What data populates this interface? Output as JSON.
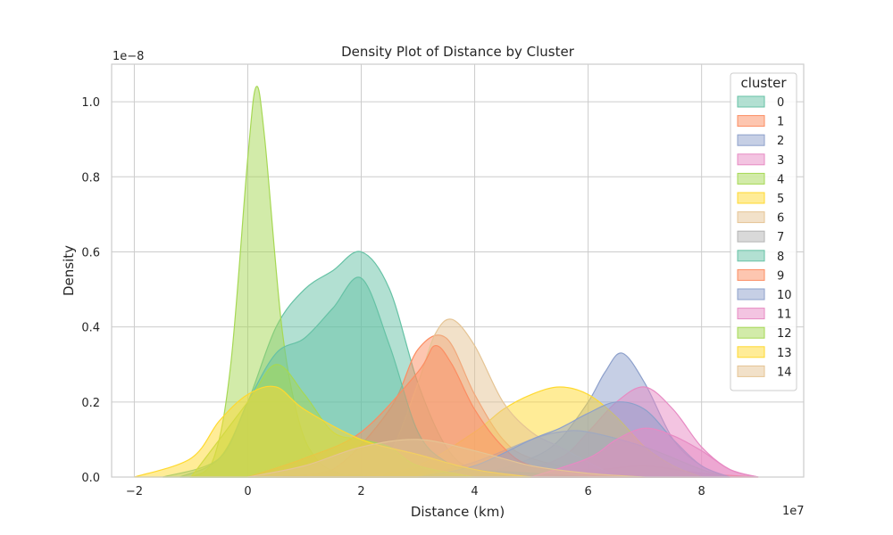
{
  "chart_data": {
    "type": "area",
    "title": "Density Plot of Distance by Cluster",
    "xlabel": "Distance (km)",
    "ylabel": "Density",
    "x_offset_label": "1e7",
    "y_offset_label": "1e−8",
    "xlim": [
      -2.4,
      9.8
    ],
    "ylim": [
      0,
      1.1
    ],
    "xticks": [
      -2,
      0,
      2,
      4,
      6,
      8
    ],
    "yticks": [
      0.0,
      0.2,
      0.4,
      0.6,
      0.8,
      1.0
    ],
    "xtick_labels": [
      "−2",
      "0",
      "2",
      "4",
      "6",
      "8"
    ],
    "ytick_labels": [
      "0.0",
      "0.2",
      "0.4",
      "0.6",
      "0.8",
      "1.0"
    ],
    "grid": true,
    "legend": {
      "title": "cluster",
      "placement": "top-right"
    },
    "series": [
      {
        "name": "0",
        "color": "#66c2a5",
        "x": [
          -1.2,
          -0.5,
          0.0,
          0.5,
          1.0,
          1.5,
          2.0,
          2.5,
          3.0,
          3.5,
          4.0,
          5.0,
          6.0
        ],
        "y": [
          0,
          0.05,
          0.2,
          0.4,
          0.5,
          0.55,
          0.6,
          0.5,
          0.25,
          0.08,
          0.02,
          0.003,
          0
        ]
      },
      {
        "name": "1",
        "color": "#fc8d62",
        "x": [
          0.5,
          1.5,
          2.5,
          3.0,
          3.5,
          4.0,
          4.5,
          5.0,
          6.0,
          7.0,
          8.0,
          9.0
        ],
        "y": [
          0,
          0.02,
          0.18,
          0.34,
          0.37,
          0.22,
          0.1,
          0.05,
          0.02,
          0.03,
          0.01,
          0
        ]
      },
      {
        "name": "2",
        "color": "#8da0cb",
        "x": [
          4.0,
          5.0,
          5.5,
          6.0,
          6.3,
          6.6,
          7.0,
          7.5,
          8.0,
          8.5
        ],
        "y": [
          0,
          0.05,
          0.1,
          0.2,
          0.28,
          0.33,
          0.25,
          0.1,
          0.03,
          0
        ]
      },
      {
        "name": "3",
        "color": "#e78ac3",
        "x": [
          4.5,
          5.5,
          6.0,
          6.5,
          7.0,
          7.5,
          8.0,
          8.5,
          9.0
        ],
        "y": [
          0,
          0.05,
          0.12,
          0.2,
          0.24,
          0.18,
          0.08,
          0.02,
          0
        ]
      },
      {
        "name": "4",
        "color": "#a6d854",
        "x": [
          -1.0,
          -0.6,
          -0.3,
          0.0,
          0.15,
          0.3,
          0.6,
          0.9,
          1.2,
          1.6,
          2.0,
          2.5,
          3.0
        ],
        "y": [
          0,
          0.05,
          0.3,
          0.85,
          1.04,
          0.9,
          0.4,
          0.15,
          0.05,
          0.01,
          0.005,
          0.002,
          0
        ]
      },
      {
        "name": "5",
        "color": "#ffd92f",
        "x": [
          2.0,
          3.0,
          4.0,
          4.5,
          5.0,
          5.5,
          6.0,
          6.5,
          7.0,
          7.5,
          8.0
        ],
        "y": [
          0,
          0.03,
          0.12,
          0.18,
          0.22,
          0.24,
          0.22,
          0.16,
          0.08,
          0.03,
          0
        ]
      },
      {
        "name": "6",
        "color": "#e5c494",
        "x": [
          2.0,
          2.5,
          3.0,
          3.3,
          3.6,
          4.0,
          4.5,
          5.0,
          5.5,
          6.0,
          6.5
        ],
        "y": [
          0,
          0.06,
          0.25,
          0.38,
          0.42,
          0.35,
          0.2,
          0.12,
          0.08,
          0.04,
          0
        ]
      },
      {
        "name": "7",
        "color": "#b3b3b3",
        "x": [
          3.0,
          4.0,
          5.0,
          5.5,
          6.0,
          7.0,
          8.0,
          8.5
        ],
        "y": [
          0,
          0.04,
          0.1,
          0.12,
          0.12,
          0.08,
          0.02,
          0
        ]
      },
      {
        "name": "8",
        "color": "#66c2a5",
        "x": [
          -1.5,
          -0.5,
          0.0,
          0.5,
          1.0,
          1.5,
          2.0,
          2.5,
          3.0,
          3.5,
          4.0,
          5.0,
          6.0
        ],
        "y": [
          0,
          0.05,
          0.2,
          0.33,
          0.37,
          0.45,
          0.53,
          0.35,
          0.12,
          0.04,
          0.02,
          0.01,
          0
        ]
      },
      {
        "name": "9",
        "color": "#fc8d62",
        "x": [
          0.0,
          1.0,
          2.0,
          3.0,
          3.3,
          3.6,
          4.0,
          4.5,
          5.0,
          6.0,
          7.0
        ],
        "y": [
          0,
          0.05,
          0.12,
          0.28,
          0.35,
          0.3,
          0.18,
          0.08,
          0.03,
          0.01,
          0
        ]
      },
      {
        "name": "10",
        "color": "#8da0cb",
        "x": [
          3.0,
          4.0,
          5.0,
          5.5,
          6.0,
          6.5,
          7.0,
          7.5,
          8.0,
          8.5
        ],
        "y": [
          0,
          0.03,
          0.1,
          0.13,
          0.17,
          0.2,
          0.18,
          0.1,
          0.03,
          0
        ]
      },
      {
        "name": "11",
        "color": "#e78ac3",
        "x": [
          5.0,
          6.0,
          6.5,
          7.0,
          7.5,
          8.0,
          8.5,
          9.0
        ],
        "y": [
          0,
          0.05,
          0.1,
          0.13,
          0.11,
          0.07,
          0.02,
          0
        ]
      },
      {
        "name": "12",
        "color": "#a6d854",
        "x": [
          -1.0,
          0.0,
          0.5,
          1.0,
          1.5,
          2.0,
          2.5,
          3.0,
          4.0
        ],
        "y": [
          0,
          0.2,
          0.3,
          0.22,
          0.12,
          0.1,
          0.08,
          0.03,
          0
        ]
      },
      {
        "name": "13",
        "color": "#ffd92f",
        "x": [
          -2.0,
          -1.0,
          -0.5,
          0.0,
          0.5,
          1.0,
          2.0,
          3.0,
          4.0,
          5.0
        ],
        "y": [
          0,
          0.05,
          0.15,
          0.22,
          0.24,
          0.18,
          0.1,
          0.06,
          0.02,
          0
        ]
      },
      {
        "name": "14",
        "color": "#e5c494",
        "x": [
          0.0,
          1.0,
          2.0,
          3.0,
          4.0,
          5.0,
          6.0,
          7.0
        ],
        "y": [
          0,
          0.03,
          0.08,
          0.1,
          0.07,
          0.03,
          0.01,
          0
        ]
      }
    ]
  }
}
